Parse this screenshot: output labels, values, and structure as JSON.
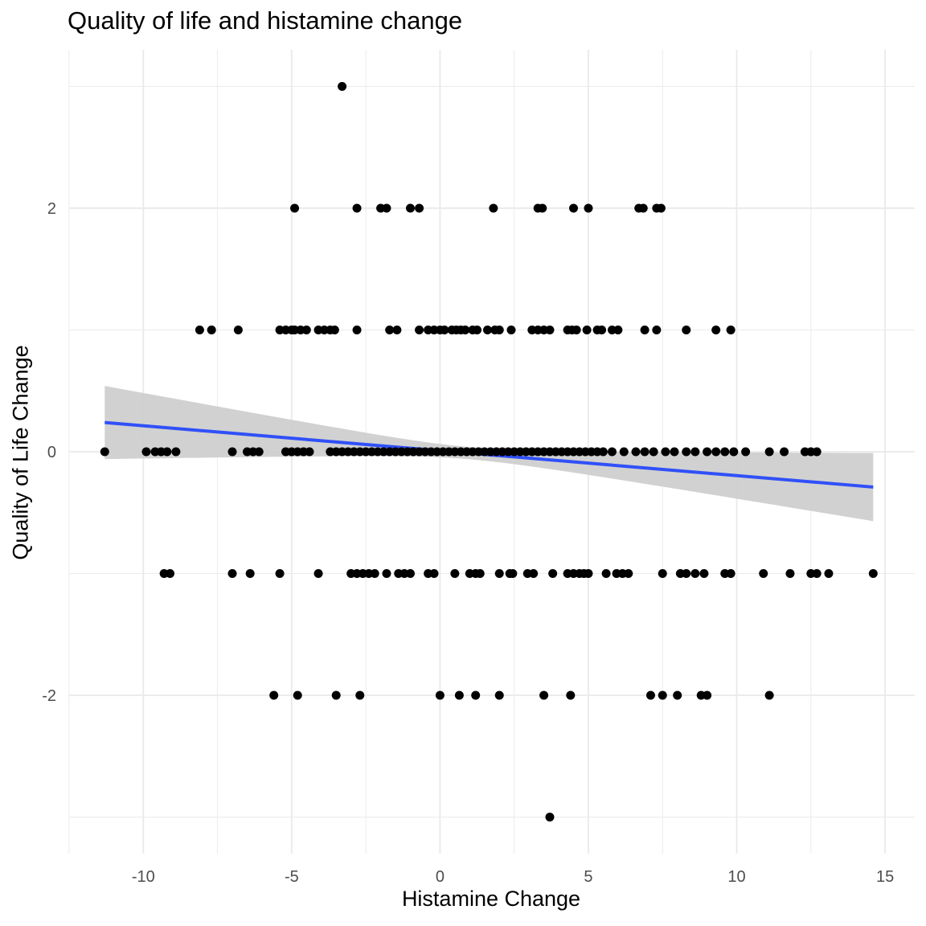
{
  "chart_data": {
    "type": "scatter",
    "title": "Quality of life and histamine change",
    "xlabel": "Histamine Change",
    "ylabel": "Quality of Life Change",
    "xlim": [
      -12.5,
      16
    ],
    "ylim": [
      -3.3,
      3.3
    ],
    "x_ticks": [
      -10,
      -5,
      0,
      5,
      10,
      15
    ],
    "y_ticks": [
      -2,
      0,
      2
    ],
    "grid": true,
    "colors": {
      "points": "#000000",
      "trend": "#3050f8",
      "band": "#cfcfcf",
      "grid": "#ebebeb",
      "tick_text": "#4d4d4d"
    },
    "trend_line": {
      "type": "linear",
      "x": [
        -11.3,
        14.6
      ],
      "y": [
        0.24,
        -0.29
      ],
      "ci_lower": [
        -0.05,
        -0.57
      ],
      "ci_upper": [
        0.54,
        -0.01
      ]
    },
    "points": [
      [
        -3.3,
        3
      ],
      [
        -4.9,
        2
      ],
      [
        -2.8,
        2
      ],
      [
        -2.0,
        2
      ],
      [
        -1.8,
        2
      ],
      [
        -1.0,
        2
      ],
      [
        -0.7,
        2
      ],
      [
        1.8,
        2
      ],
      [
        3.3,
        2
      ],
      [
        3.45,
        2
      ],
      [
        4.5,
        2
      ],
      [
        5.0,
        2
      ],
      [
        6.7,
        2
      ],
      [
        6.85,
        2
      ],
      [
        7.3,
        2
      ],
      [
        7.45,
        2
      ],
      [
        -8.1,
        1
      ],
      [
        -7.7,
        1
      ],
      [
        -6.8,
        1
      ],
      [
        -5.4,
        1
      ],
      [
        -5.2,
        1
      ],
      [
        -5.0,
        1
      ],
      [
        -4.9,
        1
      ],
      [
        -4.7,
        1
      ],
      [
        -4.5,
        1
      ],
      [
        -4.1,
        1
      ],
      [
        -3.9,
        1
      ],
      [
        -3.7,
        1
      ],
      [
        -3.55,
        1
      ],
      [
        -2.8,
        1
      ],
      [
        -1.7,
        1
      ],
      [
        -1.45,
        1
      ],
      [
        -0.7,
        1
      ],
      [
        -0.4,
        1
      ],
      [
        -0.2,
        1
      ],
      [
        0.0,
        1
      ],
      [
        0.15,
        1
      ],
      [
        0.4,
        1
      ],
      [
        0.55,
        1
      ],
      [
        0.7,
        1
      ],
      [
        0.85,
        1
      ],
      [
        1.1,
        1
      ],
      [
        1.25,
        1
      ],
      [
        1.6,
        1
      ],
      [
        1.85,
        1
      ],
      [
        2.0,
        1
      ],
      [
        2.4,
        1
      ],
      [
        3.1,
        1
      ],
      [
        3.3,
        1
      ],
      [
        3.5,
        1
      ],
      [
        3.7,
        1
      ],
      [
        4.3,
        1
      ],
      [
        4.45,
        1
      ],
      [
        4.6,
        1
      ],
      [
        4.95,
        1
      ],
      [
        5.3,
        1
      ],
      [
        5.45,
        1
      ],
      [
        5.8,
        1
      ],
      [
        6.0,
        1
      ],
      [
        6.9,
        1
      ],
      [
        7.3,
        1
      ],
      [
        8.3,
        1
      ],
      [
        9.3,
        1
      ],
      [
        9.8,
        1
      ],
      [
        -11.3,
        0
      ],
      [
        -9.9,
        0
      ],
      [
        -9.6,
        0
      ],
      [
        -9.4,
        0
      ],
      [
        -9.2,
        0
      ],
      [
        -8.9,
        0
      ],
      [
        -7.0,
        0
      ],
      [
        -6.5,
        0
      ],
      [
        -6.3,
        0
      ],
      [
        -6.1,
        0
      ],
      [
        -5.2,
        0
      ],
      [
        -5.0,
        0
      ],
      [
        -4.8,
        0
      ],
      [
        -4.6,
        0
      ],
      [
        -4.4,
        0
      ],
      [
        -3.7,
        0
      ],
      [
        -3.5,
        0
      ],
      [
        -3.3,
        0
      ],
      [
        -3.1,
        0
      ],
      [
        -2.9,
        0
      ],
      [
        -2.7,
        0
      ],
      [
        -2.5,
        0
      ],
      [
        -2.3,
        0
      ],
      [
        -2.1,
        0
      ],
      [
        -1.9,
        0
      ],
      [
        -1.7,
        0
      ],
      [
        -1.5,
        0
      ],
      [
        -1.3,
        0
      ],
      [
        -1.1,
        0
      ],
      [
        -0.9,
        0
      ],
      [
        -0.7,
        0
      ],
      [
        -0.5,
        0
      ],
      [
        -0.3,
        0
      ],
      [
        -0.1,
        0
      ],
      [
        0.1,
        0
      ],
      [
        0.3,
        0
      ],
      [
        0.5,
        0
      ],
      [
        0.7,
        0
      ],
      [
        0.9,
        0
      ],
      [
        1.1,
        0
      ],
      [
        1.3,
        0
      ],
      [
        1.5,
        0
      ],
      [
        1.7,
        0
      ],
      [
        1.9,
        0
      ],
      [
        2.1,
        0
      ],
      [
        2.3,
        0
      ],
      [
        2.5,
        0
      ],
      [
        2.7,
        0
      ],
      [
        2.9,
        0
      ],
      [
        3.1,
        0
      ],
      [
        3.3,
        0
      ],
      [
        3.5,
        0
      ],
      [
        3.7,
        0
      ],
      [
        3.9,
        0
      ],
      [
        4.1,
        0
      ],
      [
        4.3,
        0
      ],
      [
        4.5,
        0
      ],
      [
        4.7,
        0
      ],
      [
        4.9,
        0
      ],
      [
        5.1,
        0
      ],
      [
        5.3,
        0
      ],
      [
        5.5,
        0
      ],
      [
        5.8,
        0
      ],
      [
        6.2,
        0
      ],
      [
        6.6,
        0
      ],
      [
        6.9,
        0
      ],
      [
        7.2,
        0
      ],
      [
        7.6,
        0
      ],
      [
        7.9,
        0
      ],
      [
        8.3,
        0
      ],
      [
        8.6,
        0
      ],
      [
        9.0,
        0
      ],
      [
        9.3,
        0
      ],
      [
        9.6,
        0
      ],
      [
        9.9,
        0
      ],
      [
        10.3,
        0
      ],
      [
        11.1,
        0
      ],
      [
        11.6,
        0
      ],
      [
        12.3,
        0
      ],
      [
        12.5,
        0
      ],
      [
        12.7,
        0
      ],
      [
        -9.3,
        -1
      ],
      [
        -9.1,
        -1
      ],
      [
        -7.0,
        -1
      ],
      [
        -6.4,
        -1
      ],
      [
        -5.4,
        -1
      ],
      [
        -4.1,
        -1
      ],
      [
        -3.0,
        -1
      ],
      [
        -2.8,
        -1
      ],
      [
        -2.6,
        -1
      ],
      [
        -2.4,
        -1
      ],
      [
        -2.2,
        -1
      ],
      [
        -1.8,
        -1
      ],
      [
        -1.4,
        -1
      ],
      [
        -1.2,
        -1
      ],
      [
        -1.0,
        -1
      ],
      [
        -0.4,
        -1
      ],
      [
        -0.2,
        -1
      ],
      [
        0.5,
        -1
      ],
      [
        1.0,
        -1
      ],
      [
        1.2,
        -1
      ],
      [
        1.35,
        -1
      ],
      [
        2.0,
        -1
      ],
      [
        2.35,
        -1
      ],
      [
        2.45,
        -1
      ],
      [
        2.95,
        -1
      ],
      [
        3.15,
        -1
      ],
      [
        3.8,
        -1
      ],
      [
        4.3,
        -1
      ],
      [
        4.5,
        -1
      ],
      [
        4.7,
        -1
      ],
      [
        4.85,
        -1
      ],
      [
        5.0,
        -1
      ],
      [
        5.6,
        -1
      ],
      [
        5.95,
        -1
      ],
      [
        6.15,
        -1
      ],
      [
        6.35,
        -1
      ],
      [
        7.5,
        -1
      ],
      [
        8.1,
        -1
      ],
      [
        8.3,
        -1
      ],
      [
        8.6,
        -1
      ],
      [
        8.9,
        -1
      ],
      [
        9.6,
        -1
      ],
      [
        9.8,
        -1
      ],
      [
        10.9,
        -1
      ],
      [
        11.8,
        -1
      ],
      [
        12.5,
        -1
      ],
      [
        12.7,
        -1
      ],
      [
        13.1,
        -1
      ],
      [
        14.6,
        -1
      ],
      [
        -5.6,
        -2
      ],
      [
        -4.8,
        -2
      ],
      [
        -3.5,
        -2
      ],
      [
        -2.7,
        -2
      ],
      [
        0.0,
        -2
      ],
      [
        0.65,
        -2
      ],
      [
        1.2,
        -2
      ],
      [
        2.0,
        -2
      ],
      [
        3.5,
        -2
      ],
      [
        4.4,
        -2
      ],
      [
        7.1,
        -2
      ],
      [
        7.5,
        -2
      ],
      [
        8.0,
        -2
      ],
      [
        8.8,
        -2
      ],
      [
        9.0,
        -2
      ],
      [
        11.1,
        -2
      ],
      [
        3.7,
        -3
      ]
    ]
  }
}
